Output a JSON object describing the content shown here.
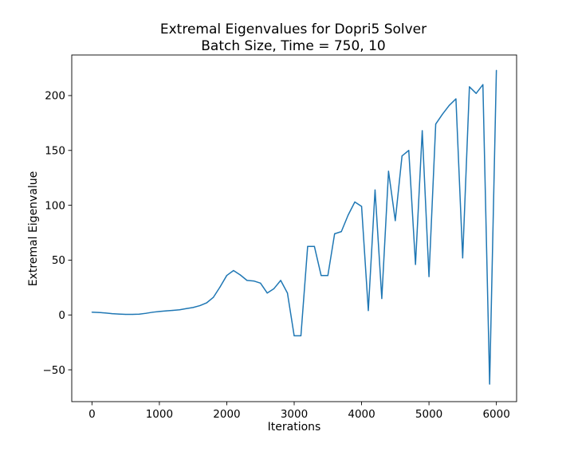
{
  "chart_data": {
    "type": "line",
    "title": "Extremal Eigenvalues for Dopri5 Solver",
    "subtitle": "Batch Size, Time = 750, 10",
    "xlabel": "Iterations",
    "ylabel": "Extremal Eigenvalue",
    "xlim": [
      -300,
      6300
    ],
    "ylim": [
      -79,
      237
    ],
    "xticks": [
      0,
      1000,
      2000,
      3000,
      4000,
      5000,
      6000
    ],
    "xtick_labels": [
      "0",
      "1000",
      "2000",
      "3000",
      "4000",
      "5000",
      "6000"
    ],
    "yticks": [
      -50,
      0,
      50,
      100,
      150,
      200
    ],
    "ytick_labels": [
      "−50",
      "0",
      "50",
      "100",
      "150",
      "200"
    ],
    "grid": false,
    "colors": {
      "line": "#1f77b4",
      "axes": "#000000",
      "background": "#ffffff"
    },
    "series": [
      {
        "x": [
          0,
          100,
          200,
          300,
          400,
          500,
          600,
          700,
          800,
          900,
          1000,
          1100,
          1200,
          1300,
          1400,
          1500,
          1600,
          1700,
          1800,
          1900,
          2000,
          2100,
          2200,
          2300,
          2400,
          2500,
          2600,
          2700,
          2800,
          2900,
          3000,
          3100,
          3200,
          3300,
          3400,
          3500,
          3600,
          3700,
          3800,
          3900,
          4000,
          4100,
          4200,
          4300,
          4400,
          4500,
          4600,
          4700,
          4800,
          4900,
          5000,
          5100,
          5200,
          5300,
          5400,
          5500,
          5600,
          5700,
          5800,
          5900,
          6000
        ],
        "y": [
          2.5,
          2.3,
          1.8,
          1.2,
          0.8,
          0.5,
          0.5,
          0.7,
          1.5,
          2.5,
          3.2,
          3.7,
          4.2,
          4.7,
          5.8,
          6.8,
          8.5,
          11,
          16,
          25.5,
          36,
          40.5,
          36.5,
          31.5,
          31,
          29,
          20,
          24,
          31.5,
          20,
          -19,
          -19,
          62.5,
          62.5,
          36,
          36,
          74,
          76,
          91,
          103,
          99,
          4,
          114,
          15,
          131,
          86,
          145,
          150,
          46,
          168,
          35,
          174,
          183,
          191,
          197,
          52,
          208,
          202,
          210,
          -63,
          223
        ]
      }
    ]
  }
}
